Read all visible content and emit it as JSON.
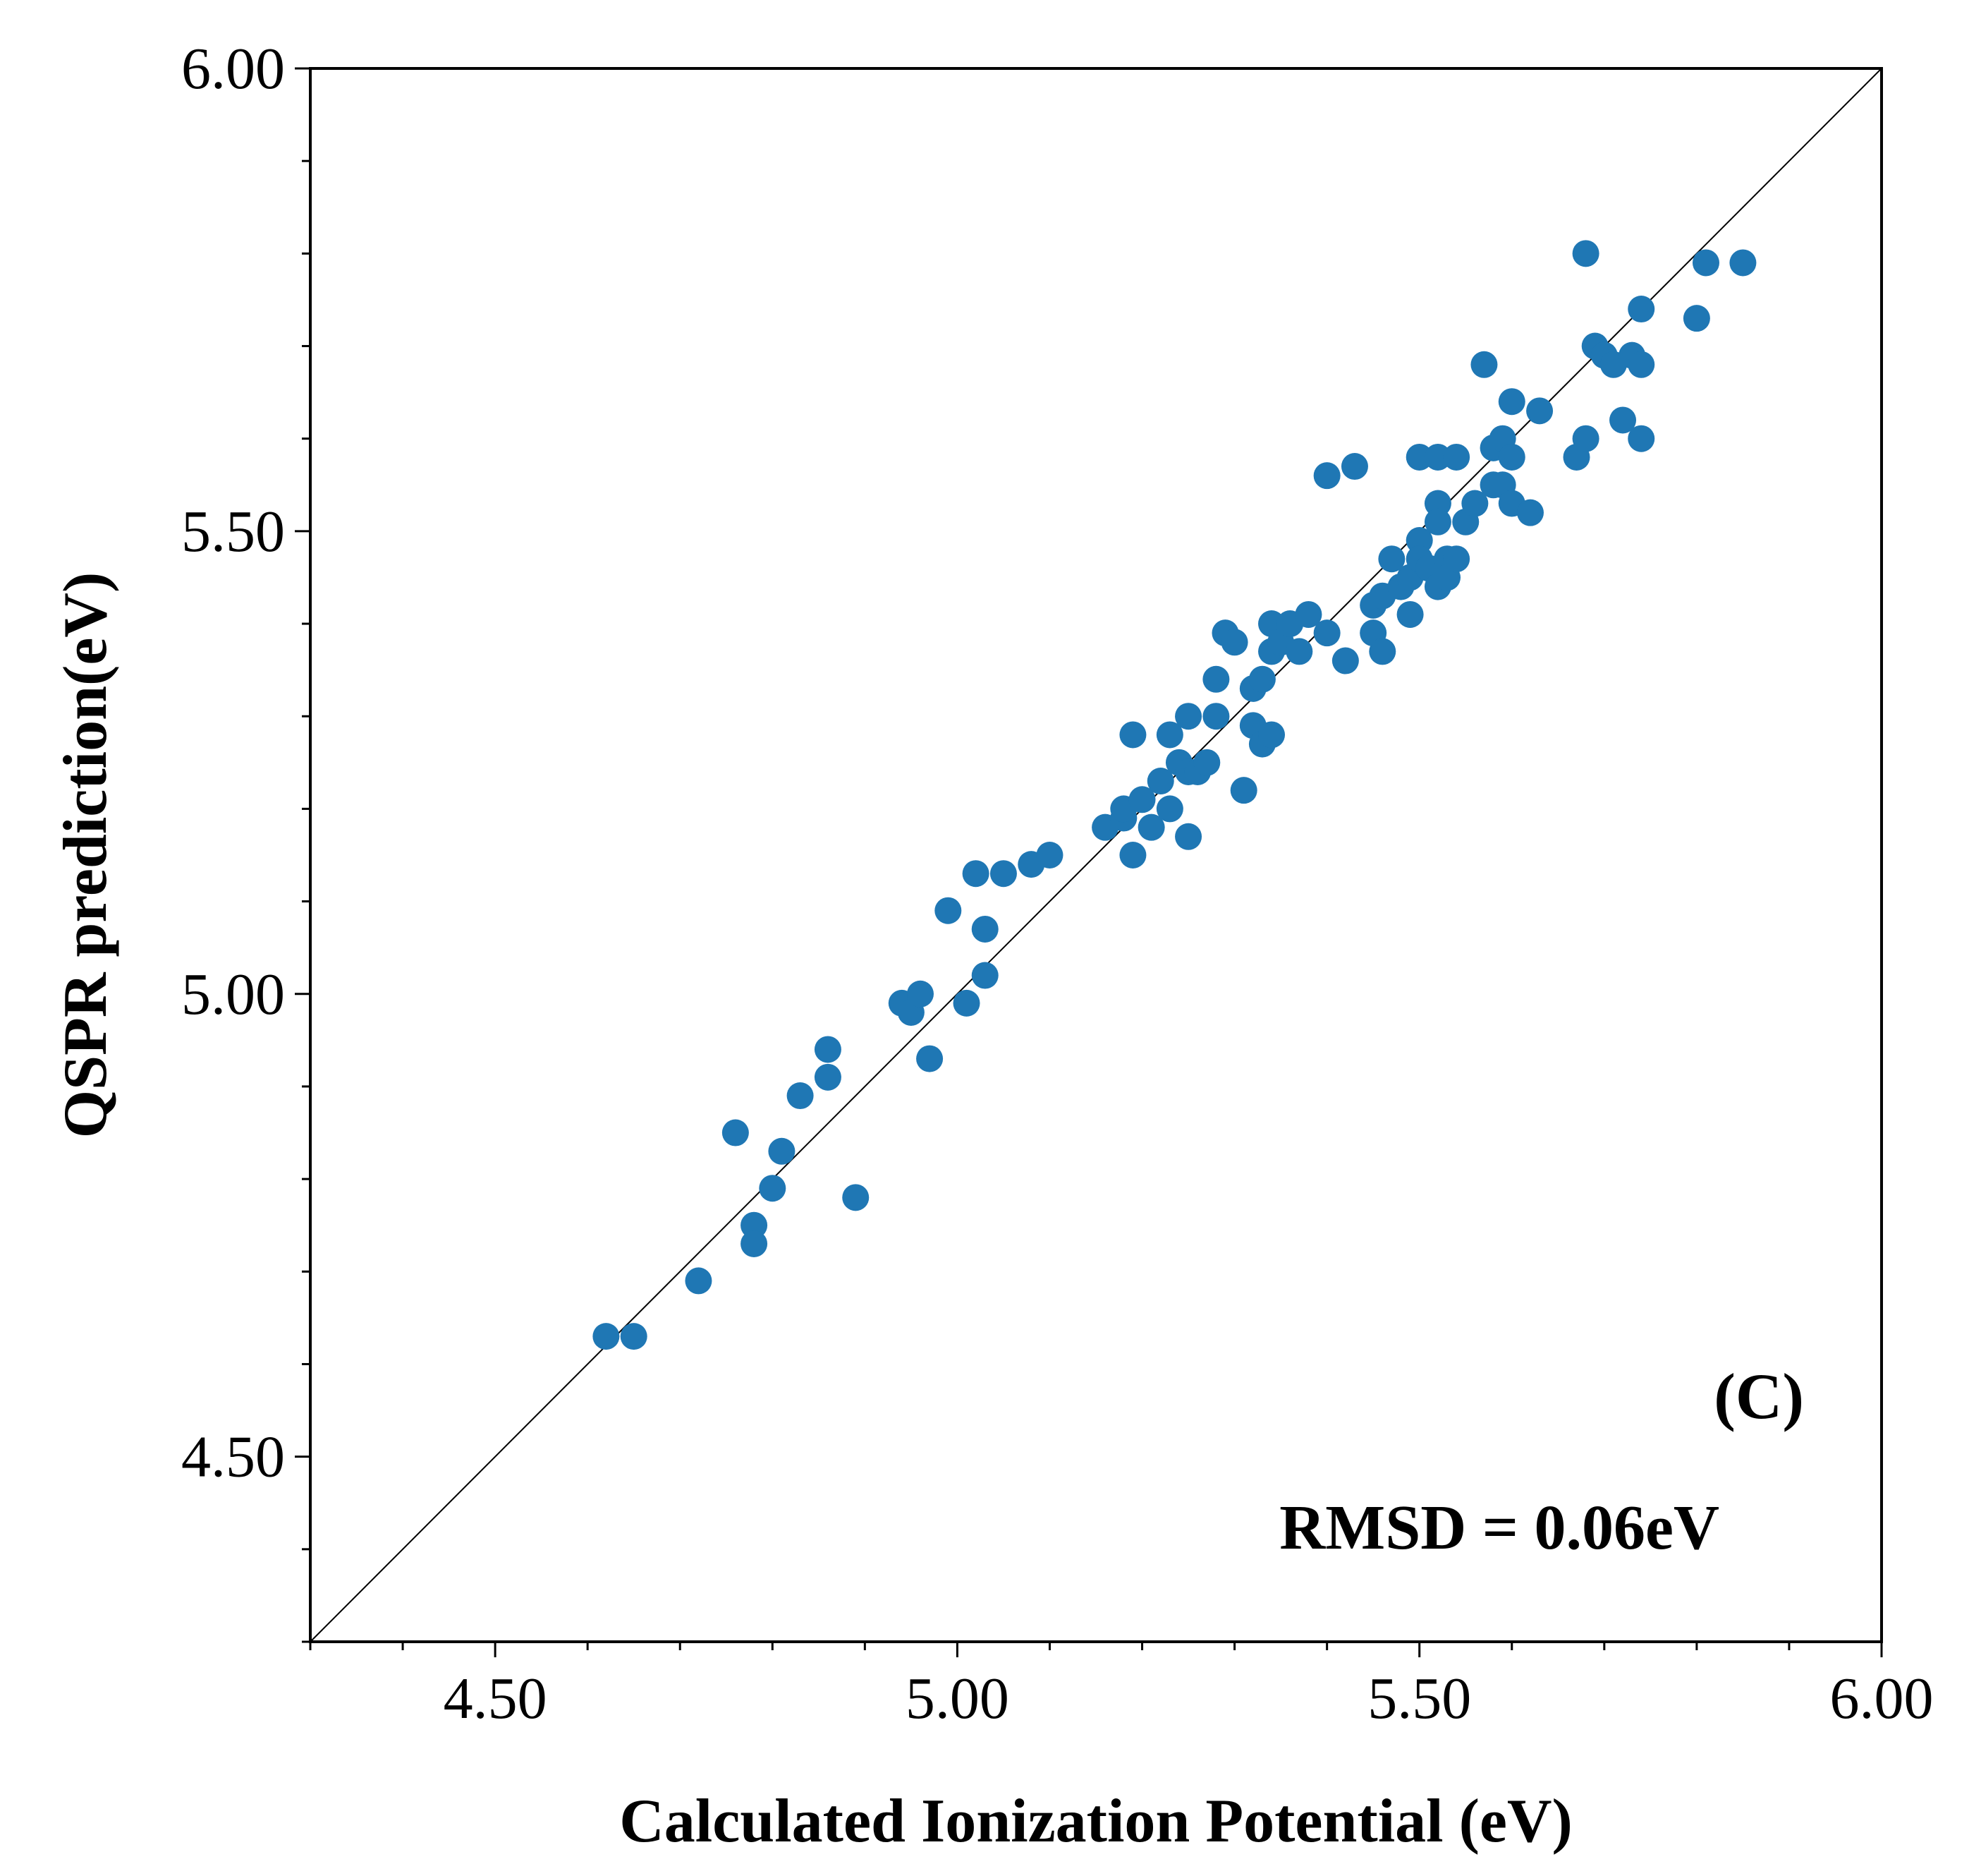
{
  "chart_data": {
    "type": "scatter",
    "title": "",
    "xlabel": "Calculated Ionization Potential (eV)",
    "ylabel": "QSPR prediction(eV)",
    "xlim": [
      4.3,
      6.0
    ],
    "ylim": [
      4.3,
      6.0
    ],
    "xticks": [
      "4.50",
      "5.00",
      "5.50",
      "6.00"
    ],
    "yticks": [
      "4.50",
      "5.00",
      "5.50",
      "6.00"
    ],
    "grid": false,
    "legend": "none",
    "reference_line": "y = x",
    "marker_color": "#1f77b4",
    "line_color": "#000000",
    "annotations": {
      "panel": "(C)",
      "metric": "RMSD = 0.06eV"
    },
    "series": [
      {
        "points": [
          [
            4.62,
            4.63
          ],
          [
            4.65,
            4.63
          ],
          [
            4.72,
            4.69
          ],
          [
            4.76,
            4.85
          ],
          [
            4.78,
            4.75
          ],
          [
            4.78,
            4.73
          ],
          [
            4.8,
            4.79
          ],
          [
            4.81,
            4.83
          ],
          [
            4.83,
            4.89
          ],
          [
            4.86,
            4.94
          ],
          [
            4.86,
            4.91
          ],
          [
            4.89,
            4.78
          ],
          [
            4.94,
            4.99
          ],
          [
            4.95,
            4.98
          ],
          [
            4.96,
            5.0
          ],
          [
            4.97,
            4.93
          ],
          [
            4.99,
            5.09
          ],
          [
            5.01,
            4.99
          ],
          [
            5.02,
            5.13
          ],
          [
            5.03,
            5.07
          ],
          [
            5.03,
            5.02
          ],
          [
            5.05,
            5.13
          ],
          [
            5.08,
            5.14
          ],
          [
            5.1,
            5.15
          ],
          [
            5.16,
            5.18
          ],
          [
            5.18,
            5.19
          ],
          [
            5.18,
            5.2
          ],
          [
            5.19,
            5.15
          ],
          [
            5.19,
            5.28
          ],
          [
            5.2,
            5.21
          ],
          [
            5.21,
            5.18
          ],
          [
            5.22,
            5.23
          ],
          [
            5.23,
            5.2
          ],
          [
            5.23,
            5.28
          ],
          [
            5.24,
            5.25
          ],
          [
            5.25,
            5.17
          ],
          [
            5.25,
            5.24
          ],
          [
            5.25,
            5.3
          ],
          [
            5.26,
            5.24
          ],
          [
            5.27,
            5.25
          ],
          [
            5.28,
            5.3
          ],
          [
            5.28,
            5.34
          ],
          [
            5.29,
            5.39
          ],
          [
            5.3,
            5.38
          ],
          [
            5.31,
            5.22
          ],
          [
            5.32,
            5.33
          ],
          [
            5.32,
            5.29
          ],
          [
            5.33,
            5.27
          ],
          [
            5.33,
            5.34
          ],
          [
            5.34,
            5.28
          ],
          [
            5.34,
            5.4
          ],
          [
            5.34,
            5.37
          ],
          [
            5.35,
            5.38
          ],
          [
            5.36,
            5.4
          ],
          [
            5.37,
            5.37
          ],
          [
            5.38,
            5.41
          ],
          [
            5.4,
            5.39
          ],
          [
            5.4,
            5.56
          ],
          [
            5.42,
            5.36
          ],
          [
            5.43,
            5.57
          ],
          [
            5.45,
            5.42
          ],
          [
            5.45,
            5.39
          ],
          [
            5.46,
            5.43
          ],
          [
            5.46,
            5.37
          ],
          [
            5.47,
            5.47
          ],
          [
            5.48,
            5.44
          ],
          [
            5.49,
            5.41
          ],
          [
            5.49,
            5.45
          ],
          [
            5.5,
            5.49
          ],
          [
            5.5,
            5.47
          ],
          [
            5.5,
            5.58
          ],
          [
            5.51,
            5.46
          ],
          [
            5.52,
            5.53
          ],
          [
            5.52,
            5.51
          ],
          [
            5.52,
            5.44
          ],
          [
            5.52,
            5.58
          ],
          [
            5.53,
            5.47
          ],
          [
            5.53,
            5.45
          ],
          [
            5.54,
            5.58
          ],
          [
            5.54,
            5.47
          ],
          [
            5.55,
            5.51
          ],
          [
            5.56,
            5.53
          ],
          [
            5.57,
            5.68
          ],
          [
            5.58,
            5.59
          ],
          [
            5.58,
            5.55
          ],
          [
            5.59,
            5.6
          ],
          [
            5.59,
            5.55
          ],
          [
            5.6,
            5.53
          ],
          [
            5.6,
            5.64
          ],
          [
            5.6,
            5.58
          ],
          [
            5.62,
            5.52
          ],
          [
            5.63,
            5.63
          ],
          [
            5.67,
            5.58
          ],
          [
            5.68,
            5.8
          ],
          [
            5.68,
            5.6
          ],
          [
            5.69,
            5.7
          ],
          [
            5.7,
            5.69
          ],
          [
            5.71,
            5.68
          ],
          [
            5.72,
            5.62
          ],
          [
            5.73,
            5.69
          ],
          [
            5.74,
            5.68
          ],
          [
            5.74,
            5.6
          ],
          [
            5.74,
            5.74
          ],
          [
            5.8,
            5.73
          ],
          [
            5.81,
            5.79
          ],
          [
            5.85,
            5.79
          ]
        ]
      }
    ]
  }
}
